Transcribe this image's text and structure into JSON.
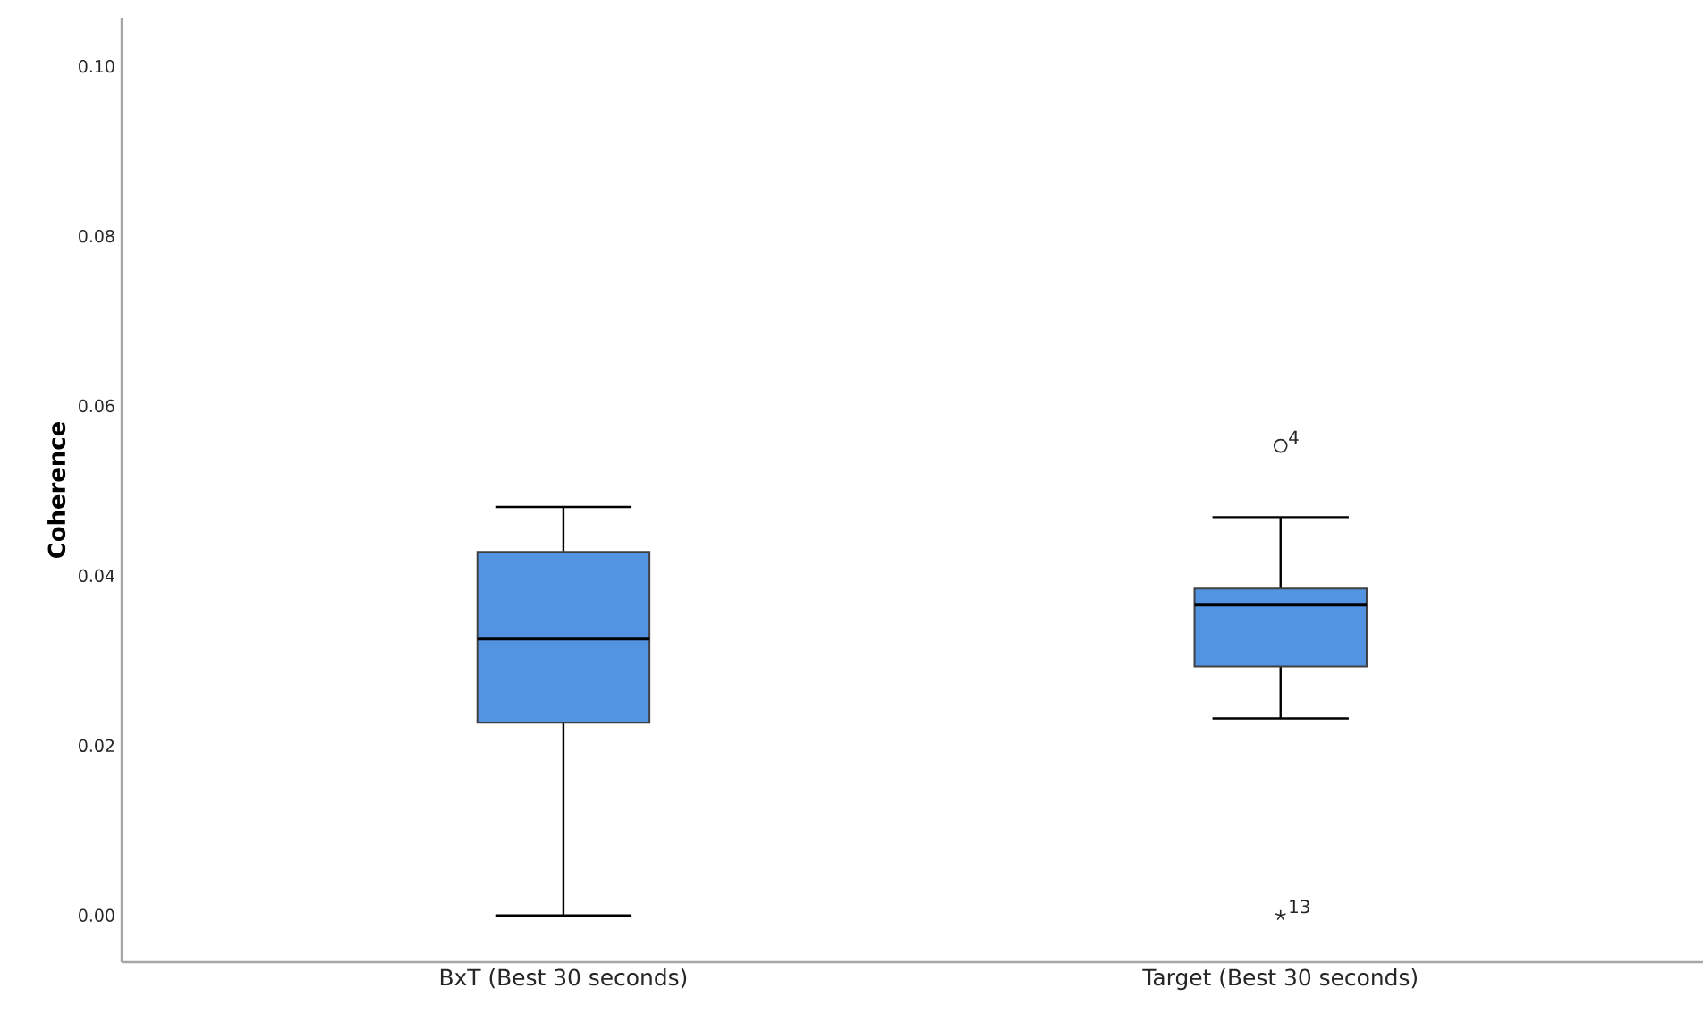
{
  "chart_data": {
    "type": "box",
    "ylabel": "Coherence",
    "categories": [
      "BxT (Best 30 seconds)",
      "Target (Best 30 seconds)"
    ],
    "series": [
      {
        "color": "#5294e2",
        "boxes": [
          {
            "low": 0.0,
            "q1": 0.0227,
            "median": 0.0326,
            "q3": 0.0428,
            "high": 0.0481
          },
          {
            "low": 0.0232,
            "q1": 0.0293,
            "median": 0.0366,
            "q3": 0.0385,
            "high": 0.0469,
            "outliers": [
              0.0553,
              0.0
            ]
          }
        ]
      }
    ],
    "ylim": [
      -0.0055,
      0.1057
    ],
    "yticks": [
      {
        "value": 0.0,
        "label": "0.00"
      },
      {
        "value": 0.02,
        "label": "0.02"
      },
      {
        "value": 0.04,
        "label": "0.04"
      },
      {
        "value": 0.06,
        "label": "0.06"
      },
      {
        "value": 0.08,
        "label": "0.08"
      },
      {
        "value": 0.1,
        "label": "0.10"
      }
    ],
    "grid": false,
    "annotations": [
      "4",
      "13"
    ]
  }
}
